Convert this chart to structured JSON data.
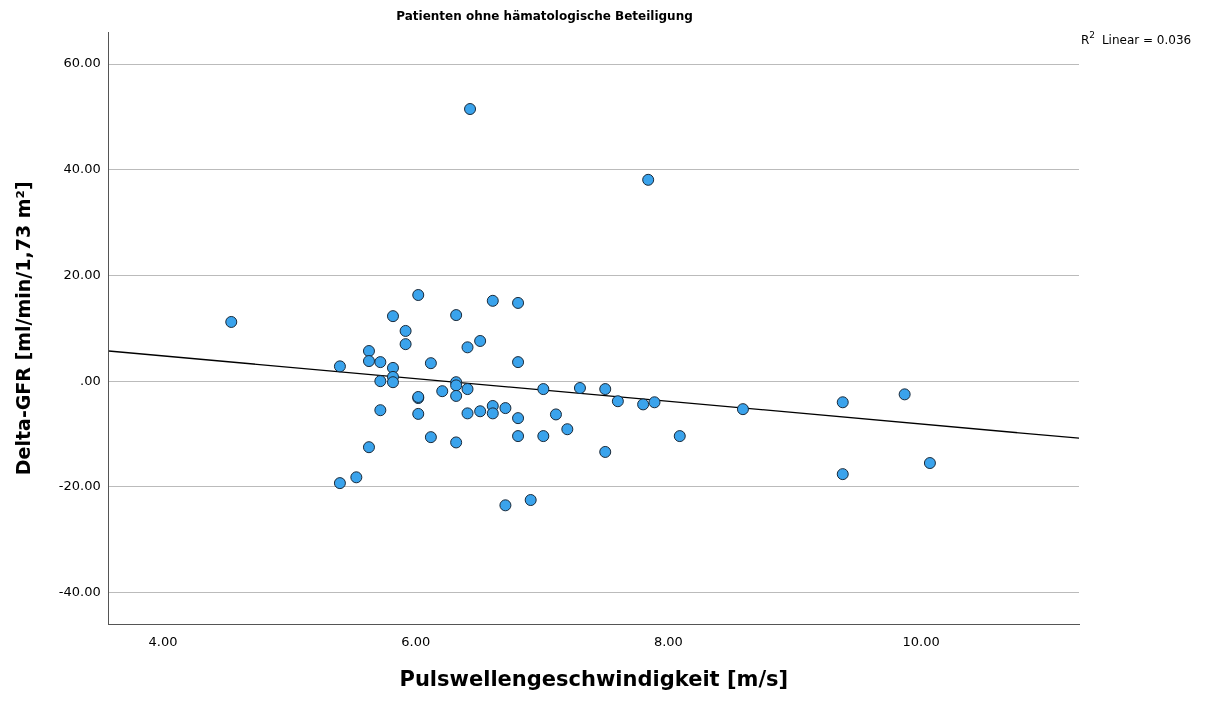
{
  "chart_data": {
    "type": "scatter",
    "title": "Patienten ohne hämatologische Beteiligung",
    "xlabel": "Pulswellengeschwindigkeit [m/s]",
    "ylabel": "Delta-GFR [ml/min/1,73 m²]",
    "annotations": [
      "R$^{2}$ Linear = 0.036"
    ],
    "xlim": [
      3.57,
      11.25
    ],
    "xticks": [
      {
        "value": 4,
        "label": "4.00"
      },
      {
        "value": 6,
        "label": "6.00"
      },
      {
        "value": 8,
        "label": "8.00"
      },
      {
        "value": 10,
        "label": "10.00"
      }
    ],
    "ylim": [
      -46,
      66
    ],
    "yticks": [
      {
        "value": -40,
        "label": "-40.00"
      },
      {
        "value": -20,
        "label": "-20.00"
      },
      {
        "value": 0,
        "label": ".00"
      },
      {
        "value": 20,
        "label": "20.00"
      },
      {
        "value": 40,
        "label": "40.00"
      },
      {
        "value": 60,
        "label": "60.00"
      }
    ],
    "grid": "y",
    "marker": "circle",
    "legend": false,
    "series": [
      {
        "color": "#3aa3ec",
        "x": [
          4.54,
          5.4,
          5.4,
          5.53,
          5.63,
          5.63,
          5.63,
          5.72,
          5.72,
          5.72,
          5.82,
          5.82,
          5.82,
          5.82,
          5.92,
          5.92,
          6.02,
          6.02,
          6.02,
          6.02,
          6.12,
          6.12,
          6.21,
          6.32,
          6.32,
          6.32,
          6.32,
          6.32,
          6.41,
          6.41,
          6.41,
          6.51,
          6.51,
          6.61,
          6.61,
          6.61,
          6.71,
          6.71,
          6.81,
          6.81,
          6.81,
          6.81,
          6.91,
          7.01,
          7.01,
          7.11,
          7.2,
          7.3,
          7.5,
          7.5,
          7.6,
          7.8,
          7.89,
          8.09,
          8.59,
          9.38,
          9.38,
          9.87,
          10.07,
          6.43,
          7.84
        ],
        "values": [
          11.2,
          -19.3,
          2.8,
          -18.2,
          -12.5,
          5.7,
          3.8,
          3.6,
          0,
          -5.5,
          12.3,
          2.5,
          0.8,
          -0.2,
          9.5,
          7.0,
          16.3,
          -3.2,
          -3.0,
          -6.2,
          3.4,
          -10.6,
          -1.9,
          12.5,
          -0.2,
          -0.8,
          -2.8,
          -11.6,
          6.4,
          -1.5,
          -6.1,
          7.6,
          -5.7,
          15.2,
          -4.7,
          -6.1,
          -5.1,
          -23.5,
          14.8,
          3.6,
          -7.0,
          -10.4,
          -22.5,
          -1.5,
          -10.4,
          -6.3,
          -9.1,
          -1.3,
          -1.5,
          -13.4,
          -3.8,
          -4.4,
          -4.0,
          -10.4,
          -5.3,
          -4.0,
          -17.6,
          -2.5,
          -15.5,
          51.5,
          38.1
        ]
      },
      {
        "type": "line",
        "color": "#000000",
        "marker": "none",
        "x": [
          3.57,
          11.25
        ],
        "values": [
          5.7,
          -10.8
        ]
      }
    ]
  }
}
